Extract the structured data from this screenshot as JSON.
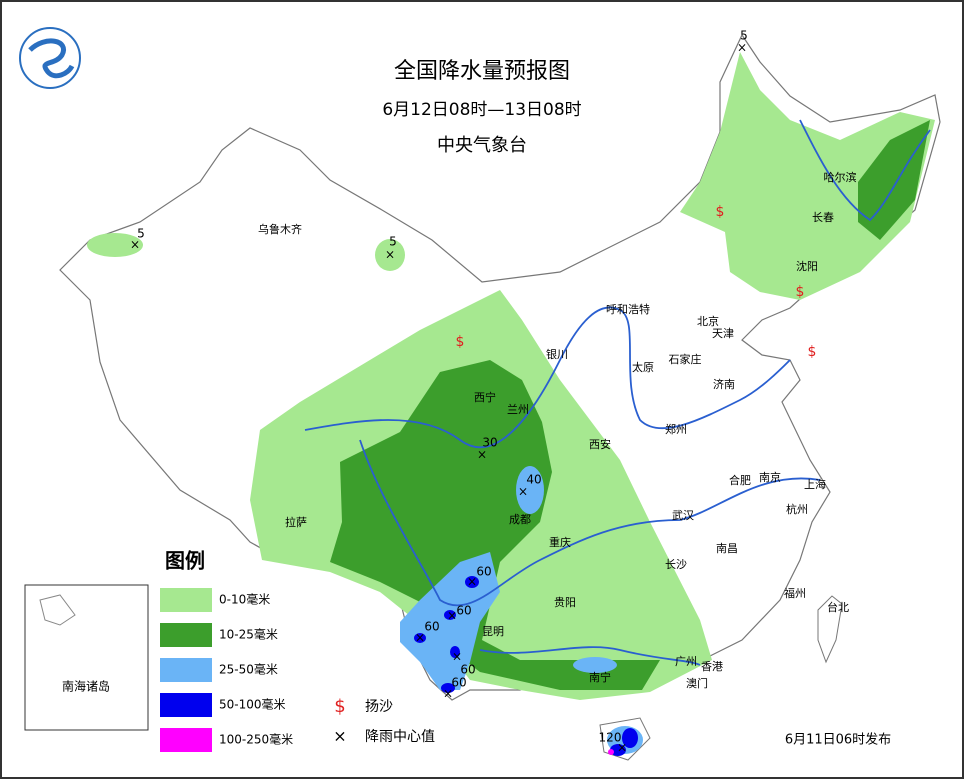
{
  "header": {
    "title": "全国降水量预报图",
    "period": "6月12日08时—13日08时",
    "issuer": "中央气象台"
  },
  "legend": {
    "title": "图例",
    "items": [
      {
        "label": "0-10毫米",
        "color": "#a6e890"
      },
      {
        "label": "10-25毫米",
        "color": "#3c9e2c"
      },
      {
        "label": "25-50毫米",
        "color": "#6ab4f6"
      },
      {
        "label": "50-100毫米",
        "color": "#0000ee"
      },
      {
        "label": "100-250毫米",
        "color": "#ff00ff"
      }
    ],
    "symbols": [
      {
        "label": "扬沙"
      },
      {
        "label": "降雨中心值"
      }
    ]
  },
  "cities": [
    "乌鲁木齐",
    "哈尔滨",
    "长春",
    "沈阳",
    "呼和浩特",
    "北京",
    "天津",
    "银川",
    "石家庄",
    "太原",
    "济南",
    "西宁",
    "兰州",
    "郑州",
    "西安",
    "合肥",
    "南京",
    "上海",
    "成都",
    "武汉",
    "杭州",
    "拉萨",
    "重庆",
    "南昌",
    "长沙",
    "贵阳",
    "福州",
    "台北",
    "昆明",
    "南宁",
    "广州",
    "香港",
    "澳门"
  ],
  "rain_centers": [
    5,
    5,
    5,
    30,
    40,
    60,
    60,
    60,
    60,
    60,
    120
  ],
  "inset": {
    "label": "南海诸岛"
  },
  "footer": "6月11日06时发布"
}
